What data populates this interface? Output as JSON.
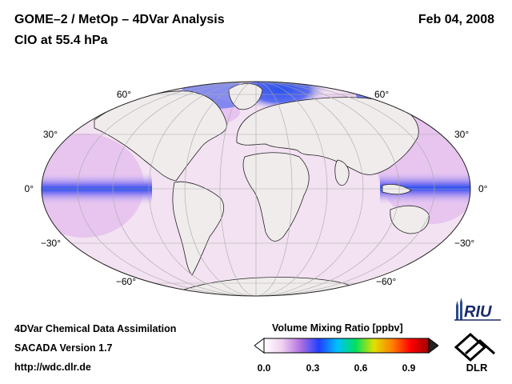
{
  "header": {
    "title": "GOME–2 / MetOp – 4DVar Analysis",
    "subtitle": "ClO at 55.4 hPa",
    "date": "Feb 04, 2008"
  },
  "map": {
    "projection": "mollweide",
    "lat_labels_left": [
      "60°",
      "30°",
      "0°",
      "−30°",
      "−60°"
    ],
    "lat_labels_right": [
      "60°",
      "30°",
      "0°",
      "−30°",
      "−60°"
    ],
    "graticule_step_deg": 30,
    "land_color": "#f0ecec",
    "high_value_color": "#2a52ee"
  },
  "colorbar": {
    "title": "Volume Mixing Ratio [ppbv]",
    "ticks": [
      "0.0",
      "0.3",
      "0.6",
      "0.9"
    ],
    "tick_values": [
      0.0,
      0.3,
      0.6,
      0.9
    ],
    "range": [
      0.0,
      1.0
    ],
    "colors": [
      "#ffffff",
      "#f0d0f0",
      "#b070e0",
      "#2040ff",
      "#00c0ff",
      "#00e060",
      "#e0e000",
      "#ff8000",
      "#ff0000",
      "#a00000"
    ]
  },
  "footer": {
    "line1": "4DVar Chemical Data Assimilation",
    "line2": "SACADA Version 1.7",
    "line3": "http://wdc.dlr.de"
  },
  "logos": {
    "riu": "RIU",
    "dlr": "DLR",
    "riu_icon": "riu-cathedral-icon",
    "dlr_icon": "dlr-logo-icon"
  }
}
